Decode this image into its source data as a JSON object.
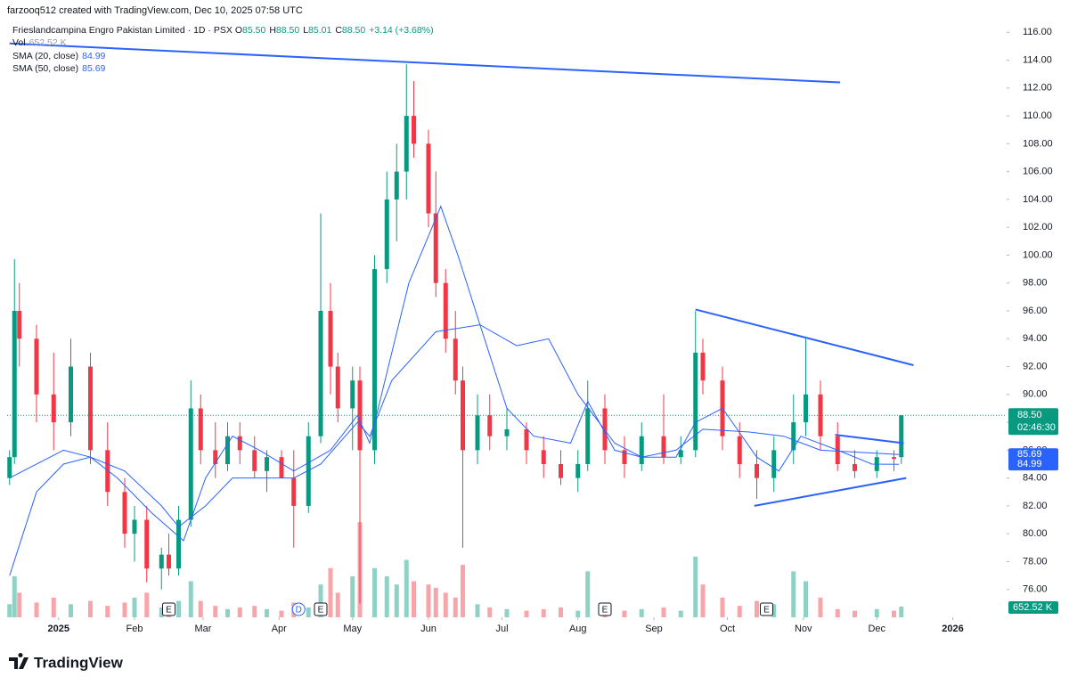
{
  "header": {
    "attribution": "farzooq512 created with TradingView.com, Dec 10, 2025 07:58 UTC"
  },
  "footer": {
    "brand": "TradingView"
  },
  "chart_data": {
    "type": "candlestick",
    "title": "Frieslandcampina Engro Pakistan Limited · 1D · PSX",
    "legend_values": [
      {
        "key": "O",
        "text": "85.50"
      },
      {
        "key": "H",
        "text": "88.50"
      },
      {
        "key": "L",
        "text": "85.01"
      },
      {
        "key": "C",
        "text": "88.50"
      }
    ],
    "change": "+3.14 (+3.68%)",
    "volume_name": "Vol",
    "up_color": "#089981",
    "down_color": "#f23645",
    "x": [
      -19,
      -17,
      -15,
      -8,
      -1,
      6,
      14,
      21,
      28,
      32,
      37,
      43,
      46,
      50,
      55,
      59,
      65,
      70,
      75,
      81,
      86,
      92,
      97,
      103,
      108,
      112,
      115,
      121,
      124,
      130,
      135,
      139,
      143,
      146,
      152,
      155,
      159,
      163,
      166,
      172,
      177,
      184,
      192,
      199,
      206,
      213,
      217,
      224,
      232,
      239,
      248,
      255,
      261,
      264,
      272,
      279,
      286,
      293,
      301,
      306,
      312,
      319,
      326,
      335,
      342,
      345
    ],
    "open": [
      84,
      85.5,
      96,
      94,
      90,
      88,
      92,
      86,
      83,
      80,
      81,
      77.5,
      78.5,
      77.5,
      81,
      89,
      86,
      85,
      87,
      86,
      84.5,
      85.5,
      84,
      82,
      87,
      96,
      92,
      89,
      91,
      86,
      99,
      104,
      106,
      110,
      108,
      103,
      98,
      94,
      91,
      86,
      88.5,
      87,
      87.5,
      86,
      85,
      84,
      85,
      89,
      86,
      85,
      87,
      85.5,
      86,
      93,
      91,
      87,
      85,
      84,
      86,
      88,
      90,
      87,
      85,
      84.5,
      85.5,
      85.5
    ],
    "high": [
      86,
      99.7,
      98,
      95,
      93,
      94,
      93,
      88,
      84,
      82,
      82,
      79,
      80,
      82,
      91,
      90,
      88,
      88,
      88,
      87,
      86,
      86,
      86,
      88,
      103,
      98,
      93,
      92,
      92,
      100,
      106,
      108,
      113.7,
      112.5,
      109,
      106,
      99,
      96,
      92,
      90,
      90,
      89,
      88,
      87,
      86,
      86,
      91,
      90,
      87,
      88,
      90,
      87,
      96,
      94,
      92,
      88,
      86,
      87,
      90,
      94,
      91,
      88,
      86,
      86,
      86,
      88.5
    ],
    "low": [
      83.5,
      85,
      92,
      88,
      86,
      87,
      85,
      82,
      79,
      78,
      76.5,
      76,
      77,
      77,
      80.5,
      85,
      84,
      84.5,
      85,
      84,
      83,
      84,
      79,
      81.5,
      86.5,
      90,
      88,
      86,
      75,
      85,
      98,
      101,
      104,
      107,
      102,
      97,
      93,
      90,
      79,
      85,
      86,
      86,
      85,
      84,
      83.5,
      83,
      84.5,
      85,
      84,
      84.5,
      85,
      85,
      85.5,
      90,
      86,
      84,
      82.5,
      83,
      85,
      87,
      86,
      84.5,
      84,
      84,
      84.5,
      85.01
    ],
    "close": [
      85.5,
      96,
      94,
      90,
      88,
      92,
      86,
      83,
      80,
      81,
      77.5,
      78.5,
      77.5,
      81,
      89,
      86,
      85,
      87,
      86,
      84.5,
      85.5,
      84,
      82,
      87,
      96,
      92,
      89,
      91,
      86,
      99,
      104,
      106,
      110,
      108,
      103,
      98,
      94,
      91,
      86,
      88.5,
      87,
      87.5,
      86,
      85,
      84,
      85,
      89,
      86,
      85,
      87,
      85.5,
      86,
      93,
      91,
      87,
      85,
      84,
      86,
      88,
      90,
      87,
      85,
      84.5,
      85.5,
      85.37,
      88.5
    ],
    "volume": [
      800,
      2500,
      1500,
      900,
      1200,
      800,
      1000,
      700,
      900,
      1200,
      1500,
      600,
      800,
      1000,
      2200,
      1000,
      700,
      500,
      600,
      700,
      500,
      400,
      900,
      600,
      2000,
      3000,
      1500,
      2500,
      5800,
      3000,
      2500,
      2000,
      3500,
      2200,
      2000,
      1800,
      1500,
      1200,
      3200,
      800,
      600,
      500,
      400,
      500,
      600,
      400,
      2800,
      900,
      400,
      500,
      600,
      400,
      3700,
      2000,
      1200,
      700,
      1000,
      800,
      2800,
      2200,
      1200,
      500,
      400,
      500,
      400,
      652.52
    ],
    "last_price": {
      "value": 88.5,
      "label": "88.50"
    },
    "countdown": "02:46:30",
    "last_volume": {
      "value": 652.52,
      "label": "652.52 K"
    },
    "series": [
      {
        "name": "SMA (20, close)",
        "color": "#2962ff",
        "x": [
          -19,
          3,
          14,
          25,
          39,
          52,
          61,
          72,
          83,
          97,
          112,
          123,
          128,
          137,
          144,
          157,
          164,
          173,
          184,
          195,
          210,
          217,
          228,
          239,
          253,
          261,
          272,
          286,
          295,
          304,
          319,
          333,
          344
        ],
        "values": [
          84,
          86,
          85.5,
          84,
          81.5,
          79.5,
          84,
          87,
          86,
          84.5,
          86,
          88.5,
          86.5,
          93,
          98,
          103.5,
          100,
          95,
          89,
          87,
          86.5,
          89.5,
          86,
          85.5,
          85.5,
          88,
          89,
          85.5,
          84.5,
          87,
          86,
          85,
          84.99
        ],
        "last": {
          "value": 84.99,
          "label": "84.99"
        }
      },
      {
        "name": "SMA (50, close)",
        "color": "#2962ff",
        "x": [
          -19,
          -8,
          3,
          14,
          28,
          43,
          50,
          61,
          72,
          83,
          97,
          108,
          123,
          128,
          137,
          155,
          173,
          188,
          201,
          213,
          228,
          239,
          253,
          264,
          283,
          297,
          312,
          344
        ],
        "values": [
          77,
          83,
          85,
          85.5,
          84.5,
          82,
          80.5,
          82,
          84,
          84,
          84,
          85,
          88,
          87,
          91,
          94.5,
          95,
          93.5,
          94,
          90,
          86.5,
          85.5,
          86,
          87.5,
          87.3,
          87,
          86,
          85.69
        ],
        "last": {
          "value": 85.69,
          "label": "85.69"
        }
      }
    ],
    "drawings": [
      {
        "color": "#2962ff",
        "x": [
          -19,
          320
        ],
        "y": [
          115.2,
          112.4
        ]
      },
      {
        "color": "#2962ff",
        "x": [
          261,
          350
        ],
        "y": [
          96.1,
          92.1
        ]
      },
      {
        "color": "#2962ff",
        "x": [
          285,
          347
        ],
        "y": [
          82.0,
          84.0
        ]
      },
      {
        "color": "#2962ff",
        "x": [
          318,
          346
        ],
        "y": [
          87.1,
          86.5
        ]
      }
    ],
    "events": [
      {
        "label": "E",
        "x": 46
      },
      {
        "label": "D",
        "x": 99
      },
      {
        "label": "E",
        "x": 108
      },
      {
        "label": "E",
        "x": 224
      },
      {
        "label": "E",
        "x": 290
      }
    ],
    "xlim": [
      -20,
      388
    ],
    "xticks": [
      {
        "value": 1,
        "label": "2025"
      },
      {
        "value": 32,
        "label": "Feb"
      },
      {
        "value": 60,
        "label": "Mar"
      },
      {
        "value": 91,
        "label": "Apr"
      },
      {
        "value": 121,
        "label": "May"
      },
      {
        "value": 152,
        "label": "Jun"
      },
      {
        "value": 182,
        "label": "Jul"
      },
      {
        "value": 213,
        "label": "Aug"
      },
      {
        "value": 244,
        "label": "Sep"
      },
      {
        "value": 274,
        "label": "Oct"
      },
      {
        "value": 305,
        "label": "Nov"
      },
      {
        "value": 335,
        "label": "Dec"
      },
      {
        "value": 366,
        "label": "2026"
      }
    ],
    "ylim": [
      74,
      116.4
    ],
    "yticks": [
      {
        "value": 76,
        "label": "76.00"
      },
      {
        "value": 78,
        "label": "78.00"
      },
      {
        "value": 80,
        "label": "80.00"
      },
      {
        "value": 82,
        "label": "82.00"
      },
      {
        "value": 84,
        "label": "84.00"
      },
      {
        "value": 86,
        "label": "86.00"
      },
      {
        "value": 88,
        "label": "88.00"
      },
      {
        "value": 90,
        "label": "90.00"
      },
      {
        "value": 92,
        "label": "92.00"
      },
      {
        "value": 94,
        "label": "94.00"
      },
      {
        "value": 96,
        "label": "96.00"
      },
      {
        "value": 98,
        "label": "98.00"
      },
      {
        "value": 100,
        "label": "100.00"
      },
      {
        "value": 102,
        "label": "102.00"
      },
      {
        "value": 104,
        "label": "104.00"
      },
      {
        "value": 106,
        "label": "106.00"
      },
      {
        "value": 108,
        "label": "108.00"
      },
      {
        "value": 110,
        "label": "110.00"
      },
      {
        "value": 112,
        "label": "112.00"
      },
      {
        "value": 114,
        "label": "114.00"
      },
      {
        "value": 116,
        "label": "116.00"
      }
    ],
    "y2lim": [
      0,
      36000
    ],
    "grid": false
  }
}
